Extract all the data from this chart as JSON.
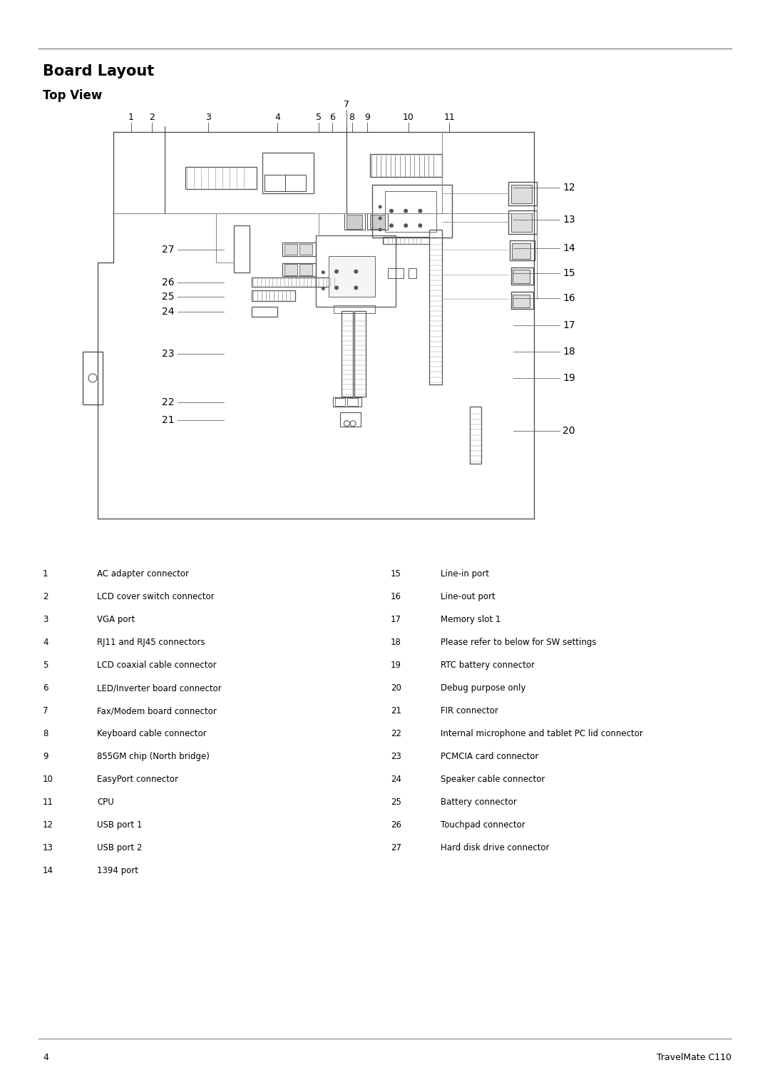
{
  "title": "Board Layout",
  "subtitle": "Top View",
  "bg_color": "#ffffff",
  "line_color": "#444444",
  "title_fontsize": 15,
  "subtitle_fontsize": 12,
  "body_fontsize": 8.5,
  "page_number": "4",
  "footer_text": "TravelMate C110",
  "left_components": [
    [
      1,
      "AC adapter connector"
    ],
    [
      2,
      "LCD cover switch connector"
    ],
    [
      3,
      "VGA port"
    ],
    [
      4,
      "RJ11 and RJ45 connectors"
    ],
    [
      5,
      "LCD coaxial cable connector"
    ],
    [
      6,
      "LED/Inverter board connector"
    ],
    [
      7,
      "Fax/Modem board connector"
    ],
    [
      8,
      "Keyboard cable connector"
    ],
    [
      9,
      "855GM chip (North bridge)"
    ],
    [
      10,
      "EasyPort connector"
    ],
    [
      11,
      "CPU"
    ],
    [
      12,
      "USB port 1"
    ],
    [
      13,
      "USB port 2"
    ],
    [
      14,
      "1394 port"
    ]
  ],
  "right_components": [
    [
      15,
      "Line-in port"
    ],
    [
      16,
      "Line-out port"
    ],
    [
      17,
      "Memory slot 1"
    ],
    [
      18,
      "Please refer to below for SW settings"
    ],
    [
      19,
      "RTC battery connector"
    ],
    [
      20,
      "Debug purpose only"
    ],
    [
      21,
      "FIR connector"
    ],
    [
      22,
      "Internal microphone and tablet PC lid connector"
    ],
    [
      23,
      "PCMCIA card connector"
    ],
    [
      24,
      "Speaker cable connector"
    ],
    [
      25,
      "Battery connector"
    ],
    [
      26,
      "Touchpad connector"
    ],
    [
      27,
      "Hard disk drive connector"
    ]
  ]
}
